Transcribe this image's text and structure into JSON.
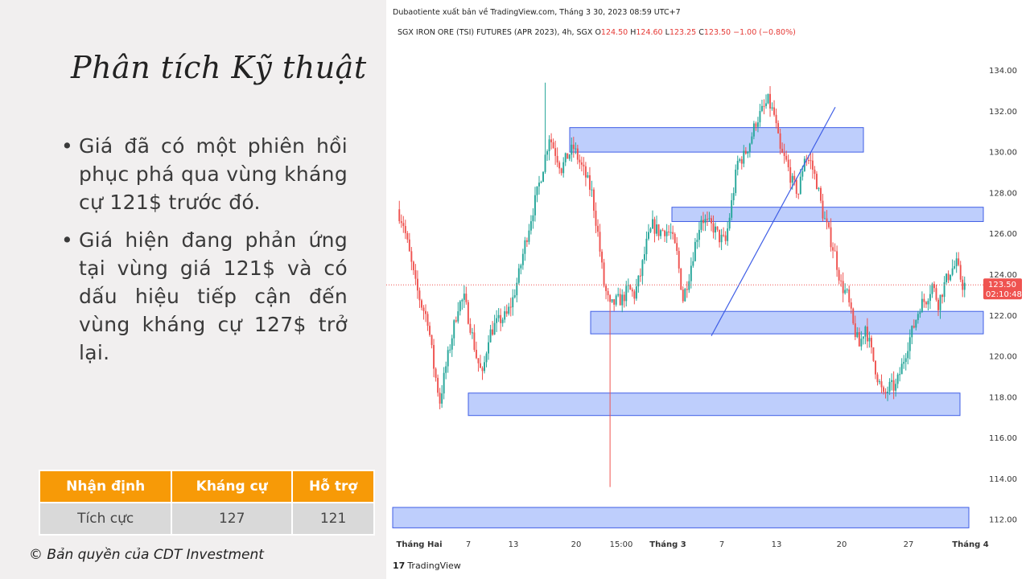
{
  "slide": {
    "title": "Phân tích Kỹ thuật",
    "bullets": [
      "Giá đã có một phiên hồi phục phá qua vùng kháng cự 121$ trước đó.",
      "Giá hiện đang phản ứng tại vùng giá 121$ và có dấu hiệu tiếp cận đến vùng kháng cự 127$ trở lại."
    ],
    "table": {
      "headers": [
        "Nhận định",
        "Kháng cự",
        "Hỗ trợ"
      ],
      "row": [
        "Tích cực",
        "127",
        "121"
      ]
    },
    "copyright": "© Bản quyền của CDT Investment"
  },
  "chart_header": {
    "publish": "Dubaotiente xuất bản về TradingView.com, Tháng 3 30, 2023 08:59 UTC+7",
    "symbol": "SGX IRON ORE (TSI) FUTURES (APR 2023), 4h, SGX",
    "o_label": "O",
    "o": "124.50",
    "h_label": "H",
    "h": "124.60",
    "l_label": "L",
    "l": "123.25",
    "c_label": "C",
    "c": "123.50",
    "change": "−1.00 (−0.80%)"
  },
  "price_tag": {
    "price": "123.50",
    "countdown": "02:10:48"
  },
  "footer": {
    "brand": "TradingView"
  },
  "colors": {
    "up": "#26a69a",
    "down": "#ef5350",
    "zone_fill": "#b3c5fb",
    "zone_stroke": "#3f5ee6",
    "trend": "#3f5ee6"
  },
  "chart_data": {
    "type": "candlestick",
    "yticks": [
      "134.00",
      "132.00",
      "130.00",
      "128.00",
      "126.00",
      "124.00",
      "122.00",
      "120.00",
      "118.00",
      "116.00",
      "114.00",
      "112.00"
    ],
    "ylim": [
      111.3,
      135.4
    ],
    "xticks": [
      {
        "label": "Tháng Hai",
        "bold": true
      },
      {
        "label": "7",
        "bold": false
      },
      {
        "label": "13",
        "bold": false
      },
      {
        "label": "20",
        "bold": false
      },
      {
        "label": "15:00",
        "bold": false
      },
      {
        "label": "Tháng 3",
        "bold": true
      },
      {
        "label": "7",
        "bold": false
      },
      {
        "label": "13",
        "bold": false
      },
      {
        "label": "20",
        "bold": false
      },
      {
        "label": "27",
        "bold": false
      },
      {
        "label": "Tháng 4",
        "bold": true
      }
    ],
    "zones": [
      {
        "from": 130.0,
        "to": 131.2
      },
      {
        "from": 126.6,
        "to": 127.3
      },
      {
        "from": 121.1,
        "to": 122.2
      },
      {
        "from": 117.1,
        "to": 118.2
      },
      {
        "from": 111.6,
        "to": 112.6
      }
    ],
    "trendline": {
      "from": 121.0,
      "to": 132.2
    },
    "last_price": 123.5,
    "path": [
      [
        0,
        127.2
      ],
      [
        3,
        126.5
      ],
      [
        6,
        125.0
      ],
      [
        9,
        123.5
      ],
      [
        12,
        122.5
      ],
      [
        15,
        121.8
      ],
      [
        18,
        119.5
      ],
      [
        21,
        117.8
      ],
      [
        24,
        119.5
      ],
      [
        27,
        121.0
      ],
      [
        30,
        122.5
      ],
      [
        33,
        122.8
      ],
      [
        36,
        121.5
      ],
      [
        39,
        120.0
      ],
      [
        42,
        119.0
      ],
      [
        45,
        121.0
      ],
      [
        48,
        121.5
      ],
      [
        51,
        121.8
      ],
      [
        54,
        122.0
      ],
      [
        57,
        122.8
      ],
      [
        60,
        124.0
      ],
      [
        63,
        125.5
      ],
      [
        66,
        126.8
      ],
      [
        69,
        128.0
      ],
      [
        72,
        129.3
      ],
      [
        75,
        130.8
      ],
      [
        78,
        130.0
      ],
      [
        81,
        129.2
      ],
      [
        84,
        129.8
      ],
      [
        87,
        130.2
      ],
      [
        90,
        129.5
      ],
      [
        93,
        128.8
      ],
      [
        96,
        128.0
      ],
      [
        99,
        126.0
      ],
      [
        102,
        123.5
      ],
      [
        105,
        122.4
      ],
      [
        108,
        122.7
      ],
      [
        111,
        122.8
      ],
      [
        114,
        123.3
      ],
      [
        117,
        123.0
      ],
      [
        120,
        124.0
      ],
      [
        123,
        125.5
      ],
      [
        126,
        126.4
      ],
      [
        129,
        126.1
      ],
      [
        132,
        126.2
      ],
      [
        135,
        126.0
      ],
      [
        138,
        125.0
      ],
      [
        141,
        122.8
      ],
      [
        144,
        124.0
      ],
      [
        147,
        125.5
      ],
      [
        150,
        126.8
      ],
      [
        153,
        126.5
      ],
      [
        156,
        126.3
      ],
      [
        159,
        125.8
      ],
      [
        162,
        125.6
      ],
      [
        165,
        127.5
      ],
      [
        168,
        129.5
      ],
      [
        171,
        129.8
      ],
      [
        174,
        130.5
      ],
      [
        177,
        131.5
      ],
      [
        180,
        132.0
      ],
      [
        183,
        132.5
      ],
      [
        186,
        131.8
      ],
      [
        189,
        130.0
      ],
      [
        192,
        129.5
      ],
      [
        195,
        128.5
      ],
      [
        198,
        128.0
      ],
      [
        201,
        129.8
      ],
      [
        204,
        129.5
      ],
      [
        207,
        128.5
      ],
      [
        210,
        127.0
      ],
      [
        213,
        126.0
      ],
      [
        216,
        125.0
      ],
      [
        219,
        123.5
      ],
      [
        222,
        123.0
      ],
      [
        225,
        121.5
      ],
      [
        228,
        120.5
      ],
      [
        231,
        121.5
      ],
      [
        234,
        120.2
      ],
      [
        237,
        119.0
      ],
      [
        240,
        118.0
      ],
      [
        243,
        118.5
      ],
      [
        246,
        118.5
      ],
      [
        249,
        119.5
      ],
      [
        252,
        120.6
      ],
      [
        255,
        121.5
      ],
      [
        258,
        122.5
      ],
      [
        261,
        122.8
      ],
      [
        264,
        123.5
      ],
      [
        267,
        122.6
      ],
      [
        270,
        123.5
      ],
      [
        273,
        124.2
      ],
      [
        276,
        124.5
      ],
      [
        279,
        123.5
      ]
    ]
  }
}
